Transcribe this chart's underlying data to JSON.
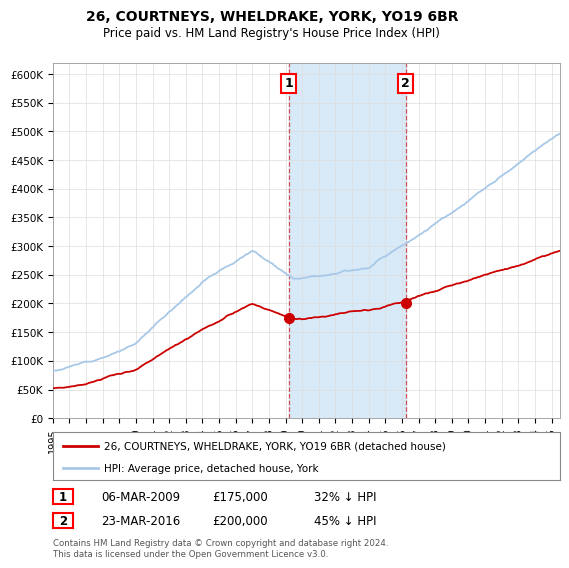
{
  "title": "26, COURTNEYS, WHELDRAKE, YORK, YO19 6BR",
  "subtitle": "Price paid vs. HM Land Registry's House Price Index (HPI)",
  "title_fontsize": 10,
  "subtitle_fontsize": 8.5,
  "ylim": [
    0,
    620000
  ],
  "yticks": [
    0,
    50000,
    100000,
    150000,
    200000,
    250000,
    300000,
    350000,
    400000,
    450000,
    500000,
    550000,
    600000
  ],
  "sale1_year": 2009.18,
  "sale2_year": 2016.23,
  "sale1_price": 175000,
  "sale2_price": 200000,
  "hpi_color": "#a8c8e8",
  "price_color": "#cc0000",
  "highlight_color": "#d8eaf8",
  "legend_label_price": "26, COURTNEYS, WHELDRAKE, YORK, YO19 6BR (detached house)",
  "legend_label_hpi": "HPI: Average price, detached house, York",
  "table_row1": [
    "1",
    "06-MAR-2009",
    "£175,000",
    "32% ↓ HPI"
  ],
  "table_row2": [
    "2",
    "23-MAR-2016",
    "£200,000",
    "45% ↓ HPI"
  ],
  "footnote": "Contains HM Land Registry data © Crown copyright and database right 2024.\nThis data is licensed under the Open Government Licence v3.0.",
  "background_color": "#ffffff",
  "grid_color": "#dddddd"
}
